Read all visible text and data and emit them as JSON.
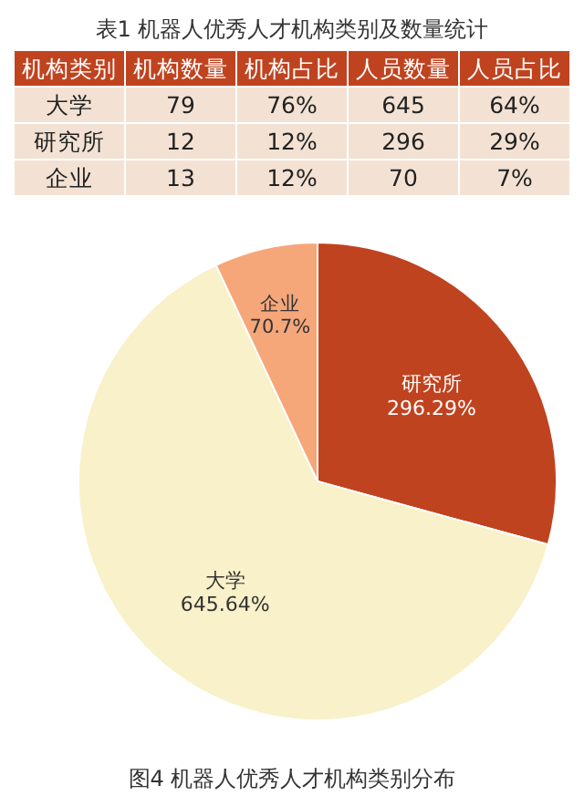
{
  "chart_data": [
    {
      "type": "other",
      "title": "表1 机器人优秀人才机构类别及数量统计",
      "annotations": [
        "机构类别",
        "机构数量",
        "机构占比",
        "人员数量",
        "人员占比",
        "大学",
        "79",
        "76%",
        "645",
        "64%",
        "研究所",
        "12",
        "12%",
        "296",
        "29%",
        "企业",
        "13",
        "12%",
        "70",
        "7%"
      ]
    },
    {
      "type": "pie",
      "categories": [
        "研究所",
        "大学",
        "企业"
      ],
      "values": [
        296.29,
        645.64,
        70.7
      ],
      "colors": [
        "#c0431f",
        "#f8f1c9",
        "#f5a77a"
      ],
      "value_labels": [
        "296.29%",
        "645.64%",
        "70.7%"
      ],
      "annotations": [
        "图4 机器人优秀人才机构类别分布"
      ]
    }
  ]
}
